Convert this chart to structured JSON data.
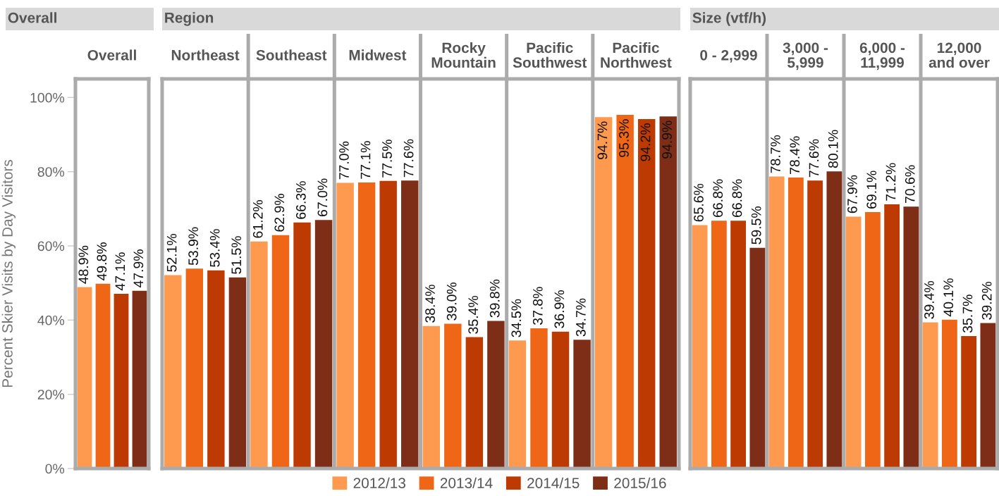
{
  "chart_data": [
    {
      "type": "bar",
      "title": "Overall",
      "ylabel": "Percent Skier Visits by Day Visitors",
      "categories": [
        "Overall"
      ],
      "series": [
        {
          "name": "2012/13",
          "color": "#fd9a4f",
          "values": [
            48.9
          ],
          "value_labels": [
            "48.9%"
          ]
        },
        {
          "name": "2013/14",
          "color": "#f06617",
          "values": [
            49.8
          ],
          "value_labels": [
            "49.8%"
          ]
        },
        {
          "name": "2014/15",
          "color": "#bd3a02",
          "values": [
            47.1
          ],
          "value_labels": [
            "47.1%"
          ]
        },
        {
          "name": "2015/16",
          "color": "#7e2e16",
          "values": [
            47.9
          ],
          "value_labels": [
            "47.9%"
          ]
        }
      ],
      "ylim": [
        0,
        105
      ],
      "yticks": [
        {
          "value": 0,
          "label": "0%"
        },
        {
          "value": 20,
          "label": "20%"
        },
        {
          "value": 40,
          "label": "40%"
        },
        {
          "value": 60,
          "label": "60%"
        },
        {
          "value": 80,
          "label": "80%"
        },
        {
          "value": 100,
          "label": "100%"
        }
      ],
      "legend": "bottom"
    },
    {
      "type": "bar",
      "title": "Region",
      "categories": [
        "Northeast",
        "Southeast",
        "Midwest",
        "Rocky\nMountain",
        "Pacific\nSouthwest",
        "Pacific\nNorthwest"
      ],
      "series": [
        {
          "name": "2012/13",
          "color": "#fd9a4f",
          "values": [
            52.1,
            61.2,
            77.0,
            38.4,
            34.5,
            94.7
          ],
          "value_labels": [
            "52.1%",
            "61.2%",
            "77.0%",
            "38.4%",
            "34.5%",
            "94.7%"
          ]
        },
        {
          "name": "2013/14",
          "color": "#f06617",
          "values": [
            53.9,
            62.9,
            77.1,
            39.0,
            37.8,
            95.3
          ],
          "value_labels": [
            "53.9%",
            "62.9%",
            "77.1%",
            "39.0%",
            "37.8%",
            "95.3%"
          ]
        },
        {
          "name": "2014/15",
          "color": "#bd3a02",
          "values": [
            53.4,
            66.3,
            77.5,
            35.4,
            36.9,
            94.2
          ],
          "value_labels": [
            "53.4%",
            "66.3%",
            "77.5%",
            "35.4%",
            "36.9%",
            "94.2%"
          ]
        },
        {
          "name": "2015/16",
          "color": "#7e2e16",
          "values": [
            51.5,
            67.0,
            77.6,
            39.8,
            34.7,
            94.9
          ],
          "value_labels": [
            "51.5%",
            "67.0%",
            "77.6%",
            "39.8%",
            "34.7%",
            "94.9%"
          ]
        }
      ],
      "ylim": [
        0,
        105
      ],
      "tick_labels": "x",
      "grid": "x"
    },
    {
      "type": "bar",
      "title": "Size (vtf/h)",
      "categories": [
        "0 - 2,999",
        "3,000 -\n5,999",
        "6,000 -\n11,999",
        "12,000\nand over"
      ],
      "series": [
        {
          "name": "2012/13",
          "color": "#fd9a4f",
          "values": [
            65.6,
            78.7,
            67.9,
            39.4
          ],
          "value_labels": [
            "65.6%",
            "78.7%",
            "67.9%",
            "39.4%"
          ]
        },
        {
          "name": "2013/14",
          "color": "#f06617",
          "values": [
            66.8,
            78.4,
            69.1,
            40.1
          ],
          "value_labels": [
            "66.8%",
            "78.4%",
            "69.1%",
            "40.1%"
          ]
        },
        {
          "name": "2014/15",
          "color": "#bd3a02",
          "values": [
            66.8,
            77.6,
            71.2,
            35.7
          ],
          "value_labels": [
            "66.8%",
            "77.6%",
            "71.2%",
            "35.7%"
          ]
        },
        {
          "name": "2015/16",
          "color": "#7e2e16",
          "values": [
            59.5,
            80.1,
            70.6,
            39.2
          ],
          "value_labels": [
            "59.5%",
            "80.1%",
            "70.6%",
            "39.2%"
          ]
        }
      ],
      "ylim": [
        0,
        105
      ],
      "tick_labels": "x",
      "grid": "x"
    }
  ]
}
